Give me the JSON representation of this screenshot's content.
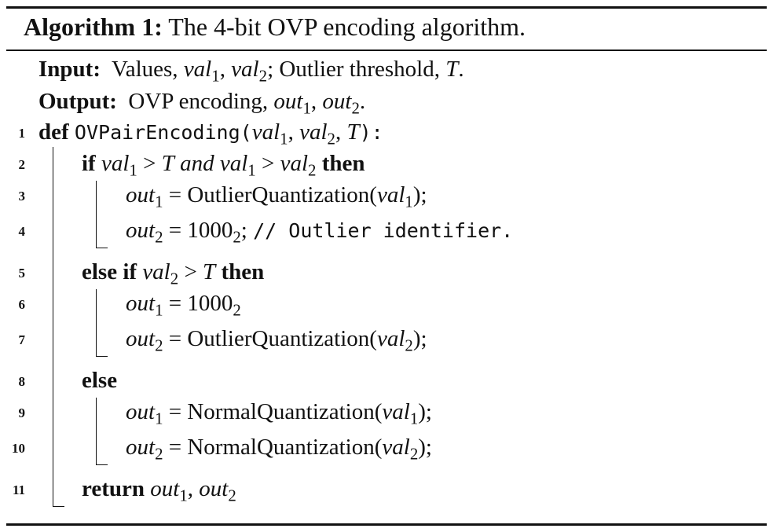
{
  "caption": {
    "label": "Algorithm 1:",
    "text": "The 4-bit OVP encoding algorithm."
  },
  "input": {
    "label": "Input:",
    "values_text": "Values,",
    "val": "val",
    "sub1": "1",
    "sub2": "2",
    "sep1": ",",
    "sep2": ";",
    "threshold_text": "Outlier threshold,",
    "T": "T",
    "end": "."
  },
  "output": {
    "label": "Output:",
    "text": "OVP encoding,",
    "out": "out",
    "sub1": "1",
    "sub2": "2",
    "sep": ",",
    "end": "."
  },
  "line_numbers": [
    "1",
    "2",
    "3",
    "4",
    "5",
    "6",
    "7",
    "8",
    "9",
    "10",
    "11"
  ],
  "code": {
    "kw_def": "def",
    "func_name": "OVPairEncoding(",
    "val": "val",
    "out": "out",
    "T": "T",
    "s1": "1",
    "s2": "2",
    "comma": ",",
    "close_colon": "):",
    "kw_if": "if",
    "kw_and": "and",
    "gt": ">",
    "eq": "=",
    "kw_then": "then",
    "kw_else_if": "else if",
    "kw_else": "else",
    "kw_return": "return",
    "outlier_quant": "OutlierQuantization(",
    "normal_quant": "NormalQuantization(",
    "close_semi": ");",
    "const": "1000",
    "const_sub": "2",
    "semi": ";",
    "comment": "// Outlier identifier."
  }
}
